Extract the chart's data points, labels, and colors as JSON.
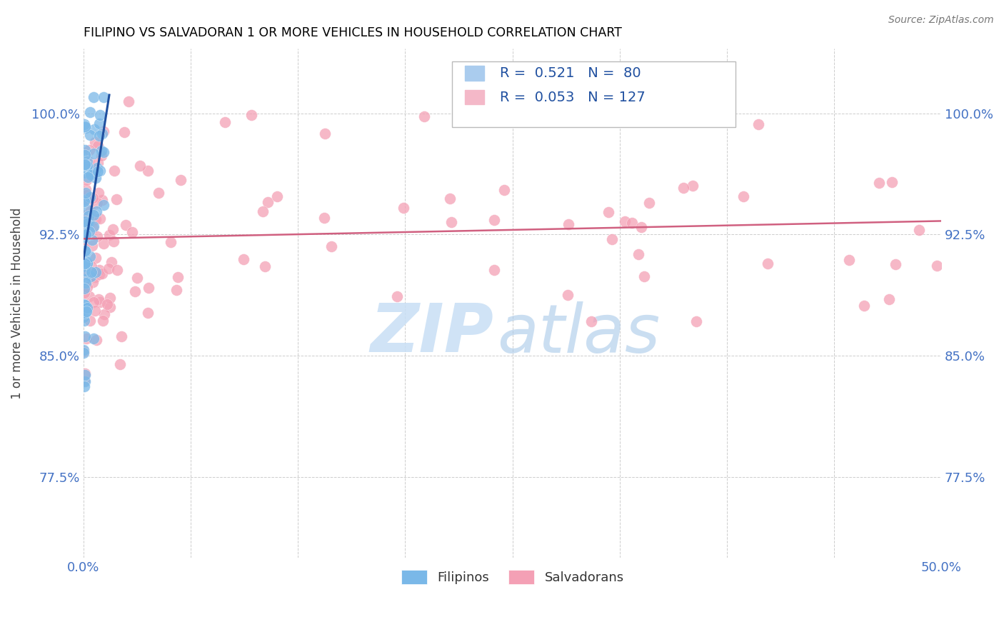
{
  "title": "FILIPINO VS SALVADORAN 1 OR MORE VEHICLES IN HOUSEHOLD CORRELATION CHART",
  "source": "Source: ZipAtlas.com",
  "ylabel": "1 or more Vehicles in Household",
  "ytick_labels": [
    "77.5%",
    "85.0%",
    "92.5%",
    "100.0%"
  ],
  "ytick_values": [
    0.775,
    0.85,
    0.925,
    1.0
  ],
  "xlim": [
    0.0,
    0.5
  ],
  "ylim": [
    0.725,
    1.04
  ],
  "filipino_color": "#7ab8e8",
  "salvadoran_color": "#f4a0b5",
  "trendline_filipino_color": "#2050a0",
  "trendline_salvadoran_color": "#d06080",
  "watermark_zip_color": "#c8dff5",
  "watermark_atlas_color": "#a8c8e8",
  "background_color": "#ffffff",
  "grid_color": "#c8c8c8",
  "title_color": "#000000",
  "axis_label_color": "#4472c4",
  "legend_fil_color": "#aaccee",
  "legend_sal_color": "#f4b8c8",
  "fil_R": "0.521",
  "fil_N": "80",
  "sal_R": "0.053",
  "sal_N": "127",
  "scatter_size": 130,
  "scatter_alpha": 0.75
}
